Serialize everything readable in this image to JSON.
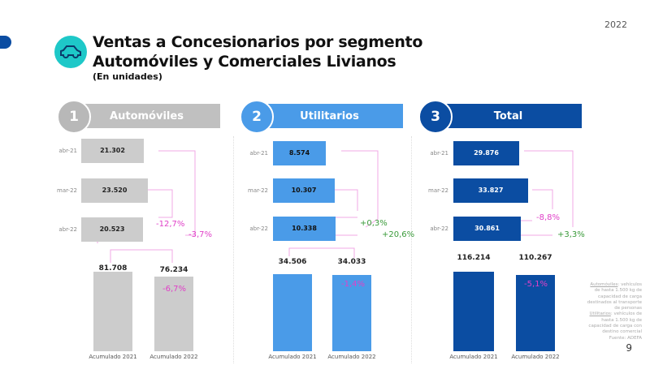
{
  "year": "2022",
  "page_number": "9",
  "title_line1": "Ventas a Concesionarios por segmento",
  "title_line2": "Automóviles y Comerciales Livianos",
  "subtitle": "(En unidades)",
  "footnote": {
    "auto_term": "Automóviles",
    "auto_text": ": vehículos de hasta 1.500 kg de capacidad de carga destinados al transporte de personas",
    "util_term": "Utilitarios",
    "util_text": ": vehículos de hasta 1.500 kg de capacidad de carga con destino comercial",
    "source": "Fuente: ADEFA"
  },
  "colors": {
    "autos": "#c8c8c8",
    "utilitarios": "#4a9be8",
    "total": "#0b4da2",
    "negative": "#e040c8",
    "positive": "#3a9a3a"
  },
  "chart_data": [
    {
      "type": "bar",
      "number": "1",
      "title": "Automóviles",
      "categories": [
        "abr-21",
        "mar-22",
        "abr-22"
      ],
      "values": [
        "21.302",
        "23.520",
        "20.523"
      ],
      "change_vs_prev_month": "-12,7%",
      "change_vs_prev_year": "-3,7%",
      "accum_categories": [
        "Acumulado 2021",
        "Acumulado 2022"
      ],
      "accum_values": [
        "81.708",
        "76.234"
      ],
      "accum_change": "-6,7%"
    },
    {
      "type": "bar",
      "number": "2",
      "title": "Utilitarios",
      "categories": [
        "abr-21",
        "mar-22",
        "abr-22"
      ],
      "values": [
        "8.574",
        "10.307",
        "10.338"
      ],
      "change_vs_prev_month": "+0,3%",
      "change_vs_prev_year": "+20,6%",
      "accum_categories": [
        "Acumulado 2021",
        "Acumulado 2022"
      ],
      "accum_values": [
        "34.506",
        "34.033"
      ],
      "accum_change": "-1,4%"
    },
    {
      "type": "bar",
      "number": "3",
      "title": "Total",
      "categories": [
        "abr-21",
        "mar-22",
        "abr-22"
      ],
      "values": [
        "29.876",
        "33.827",
        "30.861"
      ],
      "change_vs_prev_month": "-8,8%",
      "change_vs_prev_year": "+3,3%",
      "accum_categories": [
        "Acumulado 2021",
        "Acumulado 2022"
      ],
      "accum_values": [
        "116.214",
        "110.267"
      ],
      "accum_change": "-5,1%"
    }
  ]
}
